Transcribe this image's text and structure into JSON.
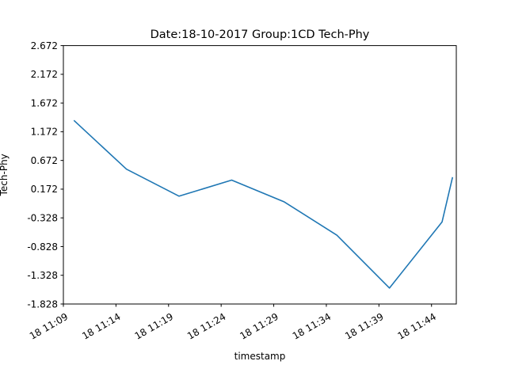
{
  "chart_data": {
    "type": "line",
    "title": "Date:18-10-2017 Group:1CD Tech-Phy",
    "xlabel": "timestamp",
    "ylabel": "Tech-Phy",
    "x_tick_labels": [
      "18 11:09",
      "18 11:14",
      "18 11:19",
      "18 11:24",
      "18 11:29",
      "18 11:34",
      "18 11:39",
      "18 11:44"
    ],
    "y_tick_labels": [
      "-1.828",
      "-1.328",
      "-0.828",
      "-0.328",
      "0.172",
      "0.672",
      "1.172",
      "1.672",
      "2.172",
      "2.672"
    ],
    "ylim": [
      -1.828,
      2.672
    ],
    "xlim": [
      "2017-10-18 11:09",
      "2017-10-18 11:46"
    ],
    "grid": false,
    "series_color": "#1f77b4",
    "series": [
      {
        "x": [
          "2017-10-18 11:10",
          "2017-10-18 11:15",
          "2017-10-18 11:20",
          "2017-10-18 11:25",
          "2017-10-18 11:30",
          "2017-10-18 11:35",
          "2017-10-18 11:40",
          "2017-10-18 11:45",
          "2017-10-18 11:46"
        ],
        "values": [
          1.37,
          0.52,
          0.05,
          0.33,
          -0.05,
          -0.63,
          -1.55,
          -0.4,
          0.38
        ]
      }
    ]
  }
}
